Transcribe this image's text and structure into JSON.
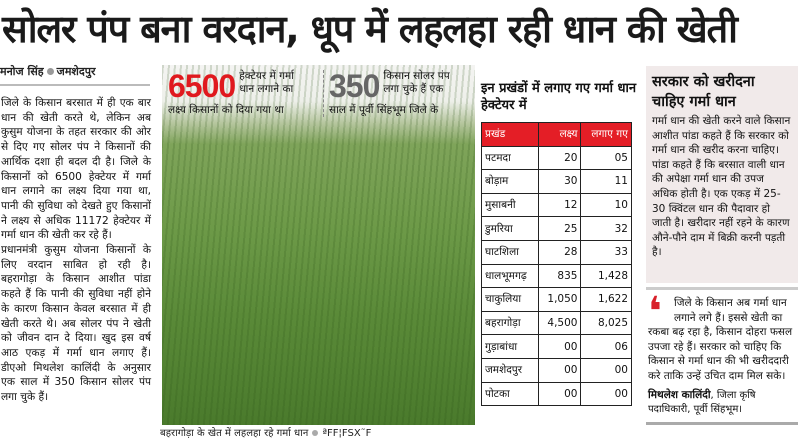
{
  "headline": "सोलर पंप बना वरदान, धूप में लहलहा रही धान की खेती",
  "byline": {
    "author": "मनोज सिंह",
    "place": "जमशेदपुर"
  },
  "body": [
    "जिले के किसान बरसात में ही एक बार धान की खेती करते थे, लेकिन अब कुसुम योजना के तहत सरकार की ओर से दिए गए सोलर पंप ने किसानों की आर्थिक दशा ही बदल दी है। जिले के किसानों को 6500 हेक्टेयर में गर्मा धान लगाने का लक्ष्य दिया गया था, पानी की सुविधा को देखते हुए किसानों ने लक्ष्य से अधिक 11172 हेक्टेयर में गर्मा धान की खेती कर रहे हैं।",
    "प्रधानमंत्री कुसुम योजना किसानों के लिए वरदान साबित हो रही है। बहरागोड़ा के किसान आशीत पांडा कहते हैं कि पानी की सुविधा नहीं होने के कारण किसान केवल बरसात में ही खेती करते थे। अब सोलर पंप ने खेती को जीवन दान दे दिया। खुद इस वर्ष आठ एकड़ में गर्मा धान लगाए हैं। डीएओ मिथलेश कालिंदी के अनुसार एक साल में 350 किसान सोलर पंप लगा चुके हैं।"
  ],
  "stats": [
    {
      "number": "6500",
      "line1": "हेक्टेयर में गर्मा",
      "line2": "धान लगाने का",
      "line3": "लक्ष्य किसानों को दिया गया था",
      "color": "#e0191e"
    },
    {
      "number": "350",
      "line1": "किसान सोलर पंप",
      "line2": "लगा चुके हैं एक",
      "line3": "साल में पूर्वी सिंहभूम जिले के",
      "color": "#666666"
    }
  ],
  "table": {
    "title": "इन प्रखंडों में लगाए गए गर्मा धान हेक्टेयर में",
    "headers": [
      "प्रखंड",
      "लक्ष्य",
      "लगाए गए"
    ],
    "rows": [
      [
        "पटमदा",
        "20",
        "05"
      ],
      [
        "बोड़ाम",
        "30",
        "11"
      ],
      [
        "मुसाबनी",
        "12",
        "10"
      ],
      [
        "डुमरिया",
        "25",
        "32"
      ],
      [
        "घाटशिला",
        "28",
        "33"
      ],
      [
        "धालभूमगढ़",
        "835",
        "1,428"
      ],
      [
        "चाकुलिया",
        "1,050",
        "1,622"
      ],
      [
        "बहरागोड़ा",
        "4,500",
        "8,025"
      ],
      [
        "गुड़ाबांधा",
        "00",
        "06"
      ],
      [
        "जमशेदपुर",
        "00",
        "00"
      ],
      [
        "पोटका",
        "00",
        "00"
      ]
    ],
    "header_color": "#e41e26"
  },
  "sidebar": {
    "title": "सरकार को खरीदना चाहिए गर्मा धान",
    "text": "गर्मा धान की खेती करने वाले किसान आशीत पांडा कहते हैं कि सरकार को गर्मा धान की खरीद करना चाहिए। पांडा कहते हैं कि बरसात वाली धान की अपेक्षा गर्मा धान की उपज अधिक होती है। एक एकड़ में 25-30 क्विंटल धान की पैदावार हो जाती है। खरीदार नहीं रहने के कारण औने-पौने दाम में बिक्री करनी पड़ती है।"
  },
  "quote": {
    "text": "जिले के किसान अब गर्मा धान लगाने लगे हैं। इससे खेती का रकबा बढ़ रहा है, किसान दोहरा फसल उपजा रहे हैं। सरकार को चाहिए कि किसान से गर्मा धान की भी खरीददारी करे ताकि उन्हें उचित दाम मिल सके।",
    "author": "मिथलेश कालिंदी",
    "designation": ", जिला कृषि पदाधिकारी, पूर्वी सिंहभूम।"
  },
  "photo_caption": {
    "text": "बहरागोड़ा के खेत में लहलहा रहे गर्मा धान",
    "credit": "ªFF¦FSX˜F"
  }
}
